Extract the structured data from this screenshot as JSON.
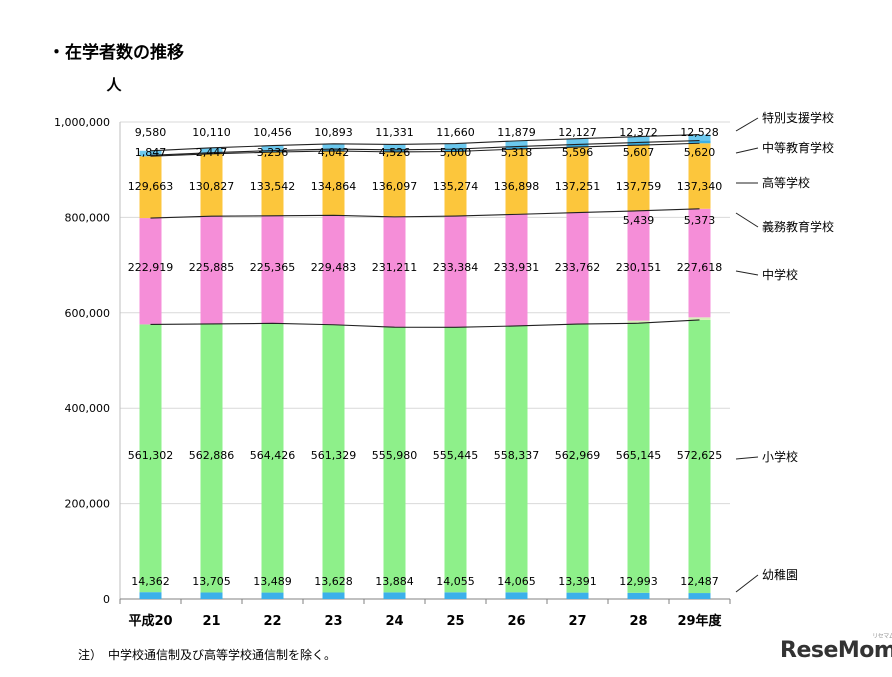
{
  "title": "・在学者数の推移",
  "note": "注）　中学校通信制及び高等学校通信制を除く。",
  "logo": {
    "text": "ReseMom",
    "sub": "リセマム"
  },
  "colors": {
    "幼稚園": "#3cb0ea",
    "小学校": "#8ef08a",
    "義務教育学校": "#d6f0b8",
    "中学校": "#f58ed8",
    "高等学校": "#fcc63c",
    "中等教育学校": "#3ab0e6",
    "特別支援学校": "#6cc8ee"
  },
  "chart_data": {
    "type": "bar",
    "stacked": true,
    "ylabel": "人",
    "ylim": [
      0,
      1000000
    ],
    "yticks": [
      "0",
      "200,000",
      "400,000",
      "600,000",
      "800,000",
      "1,000,000"
    ],
    "categories": [
      "平成20",
      "21",
      "22",
      "23",
      "24",
      "25",
      "26",
      "27",
      "28",
      "29年度"
    ],
    "series": [
      {
        "name": "幼稚園",
        "values": [
          14362,
          13705,
          13489,
          13628,
          13884,
          14055,
          14065,
          13391,
          12993,
          12487
        ],
        "labels": [
          "14,362",
          "13,705",
          "13,489",
          "13,628",
          "13,884",
          "14,055",
          "14,065",
          "13,391",
          "12,993",
          "12,487"
        ]
      },
      {
        "name": "小学校",
        "values": [
          561302,
          562886,
          564426,
          561329,
          555980,
          555445,
          558337,
          562969,
          565145,
          572625
        ],
        "labels": [
          "561,302",
          "562,886",
          "564,426",
          "561,329",
          "555,980",
          "555,445",
          "558,337",
          "562,969",
          "565,145",
          "572,625"
        ]
      },
      {
        "name": "義務教育学校",
        "values": [
          0,
          0,
          0,
          0,
          0,
          0,
          0,
          0,
          5439,
          5373
        ],
        "labels": [
          "",
          "",
          "",
          "",
          "",
          "",
          "",
          "",
          "5,439",
          "5,373"
        ]
      },
      {
        "name": "中学校",
        "values": [
          222919,
          225885,
          225365,
          229483,
          231211,
          233384,
          233931,
          233762,
          230151,
          227618
        ],
        "labels": [
          "222,919",
          "225,885",
          "225,365",
          "229,483",
          "231,211",
          "233,384",
          "233,931",
          "233,762",
          "230,151",
          "227,618"
        ]
      },
      {
        "name": "高等学校",
        "values": [
          129663,
          130827,
          133542,
          134864,
          136097,
          135274,
          136898,
          137251,
          137759,
          137340
        ],
        "labels": [
          "129,663",
          "130,827",
          "133,542",
          "134,864",
          "136,097",
          "135,274",
          "136,898",
          "137,251",
          "137,759",
          "137,340"
        ]
      },
      {
        "name": "中等教育学校",
        "values": [
          1847,
          2447,
          3236,
          4042,
          4526,
          5000,
          5318,
          5596,
          5607,
          5620
        ],
        "labels": [
          "1,847",
          "2,447",
          "3,236",
          "4,042",
          "4,526",
          "5,000",
          "5,318",
          "5,596",
          "5,607",
          "5,620"
        ]
      },
      {
        "name": "特別支援学校",
        "values": [
          9580,
          10110,
          10456,
          10893,
          11331,
          11660,
          11879,
          12127,
          12372,
          12528
        ],
        "labels": [
          "9,580",
          "10,110",
          "10,456",
          "10,893",
          "11,331",
          "11,660",
          "11,879",
          "12,127",
          "12,372",
          "12,528"
        ]
      }
    ],
    "legend": [
      "特別支援学校",
      "中等教育学校",
      "高等学校",
      "義務教育学校",
      "中学校",
      "小学校",
      "幼稚園"
    ],
    "legend_placement": "right",
    "grid": true
  }
}
